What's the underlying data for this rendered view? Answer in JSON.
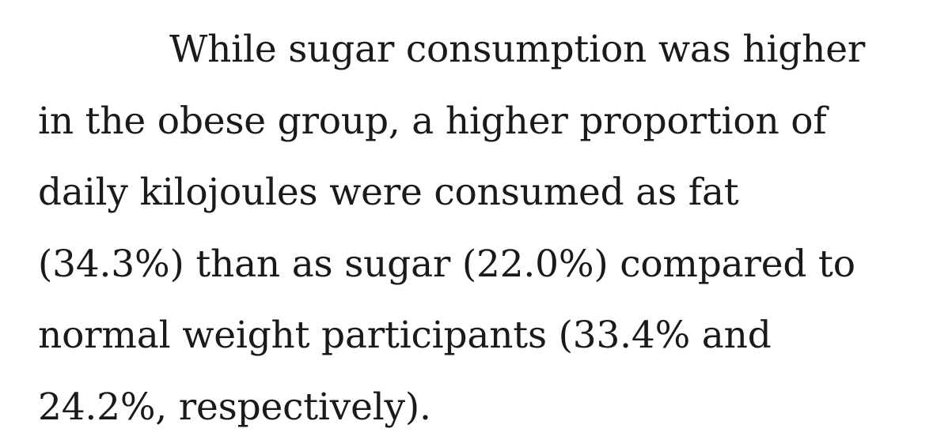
{
  "article": {
    "paragraph_lines": [
      "While sugar consumption was higher",
      "in the obese group, a higher proportion of",
      "daily kilojoules were consumed as fat",
      "(34.3%) than as sugar (22.0%) compared to",
      "normal weight participants (33.4% and",
      "24.2%, respectively)."
    ]
  }
}
